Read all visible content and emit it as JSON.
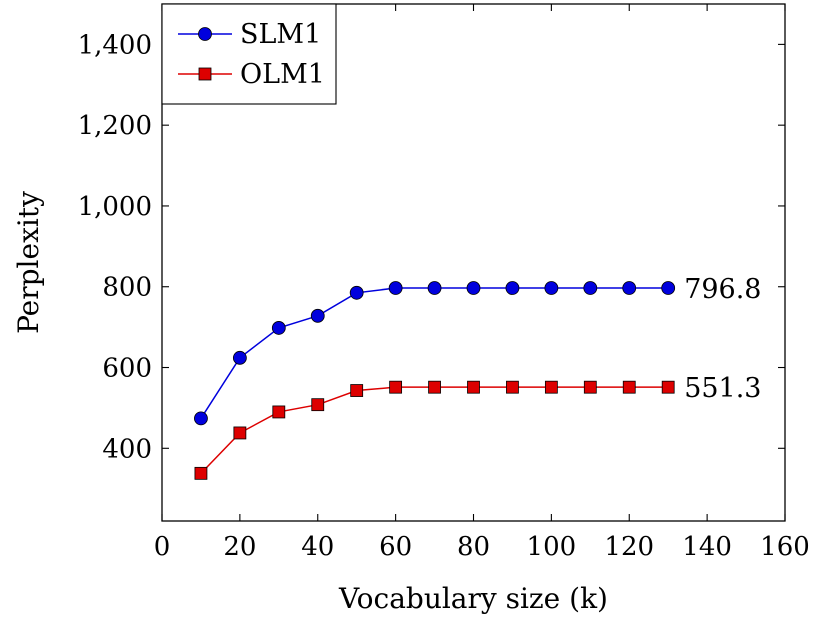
{
  "chart_data": {
    "type": "line",
    "title": "",
    "xlabel": "Vocabulary size (k)",
    "ylabel": "Perplexity",
    "xlim": [
      0,
      160
    ],
    "ylim": [
      220,
      1500
    ],
    "x_ticks": [
      0,
      20,
      40,
      60,
      80,
      100,
      120,
      140,
      160
    ],
    "x_tick_labels": [
      "0",
      "20",
      "40",
      "60",
      "80",
      "100",
      "120",
      "140",
      "160"
    ],
    "y_ticks": [
      400,
      600,
      800,
      1000,
      1200,
      1400
    ],
    "y_tick_labels": [
      "400",
      "600",
      "800",
      "1,000",
      "1,200",
      "1,400"
    ],
    "grid": false,
    "legend_position": "top-left",
    "x": [
      10,
      20,
      30,
      40,
      50,
      60,
      70,
      80,
      90,
      100,
      110,
      120,
      130
    ],
    "series": [
      {
        "name": "SLM1",
        "color": "#0000dd",
        "marker": "circle",
        "values": [
          474,
          624,
          698,
          728,
          785,
          796.8,
          796.8,
          796.8,
          796.8,
          796.8,
          796.8,
          796.8,
          796.8
        ],
        "end_label": "796.8"
      },
      {
        "name": "OLM1",
        "color": "#dd0000",
        "marker": "square",
        "values": [
          338,
          438,
          490,
          508,
          543,
          551.3,
          551.3,
          551.3,
          551.3,
          551.3,
          551.3,
          551.3,
          551.3
        ],
        "end_label": "551.3"
      }
    ]
  }
}
